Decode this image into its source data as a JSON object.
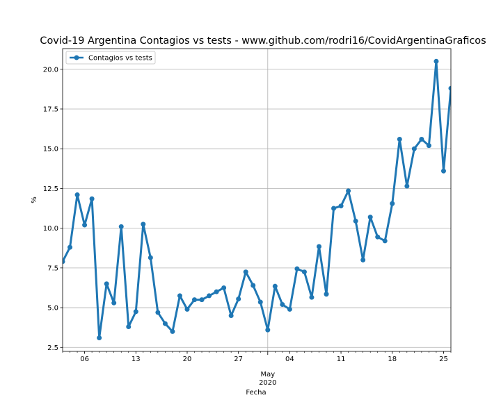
{
  "chart_data": {
    "type": "line",
    "title": "Covid-19 Argentina Contagios vs tests - www.github.com/rodri16/CovidArgentinaGraficos",
    "xlabel": "Fecha",
    "ylabel": "%",
    "x_start": "2020-04-03",
    "x_range": [
      "2020-04-03",
      "2020-05-26"
    ],
    "ylim": [
      2.25,
      21.3
    ],
    "y_ticks": [
      2.5,
      5.0,
      7.5,
      10.0,
      12.5,
      15.0,
      17.5,
      20.0
    ],
    "y_tick_labels": [
      "2.5",
      "5.0",
      "7.5",
      "10.0",
      "12.5",
      "15.0",
      "17.5",
      "20.0"
    ],
    "x_ticks": [
      {
        "date": "2020-04-06",
        "label": "06"
      },
      {
        "date": "2020-04-13",
        "label": "13"
      },
      {
        "date": "2020-04-20",
        "label": "20"
      },
      {
        "date": "2020-04-27",
        "label": "27"
      },
      {
        "date": "2020-05-04",
        "label": "04"
      },
      {
        "date": "2020-05-11",
        "label": "11"
      },
      {
        "date": "2020-05-18",
        "label": "18"
      },
      {
        "date": "2020-05-25",
        "label": "25"
      }
    ],
    "major_tick": {
      "date": "2020-05-01",
      "label_month": "May",
      "label_year": "2020"
    },
    "grid": true,
    "legend_position": "upper-left",
    "series": [
      {
        "name": "Contagios vs tests",
        "color": "#1f77b4",
        "values": [
          7.9,
          8.8,
          12.1,
          10.2,
          11.85,
          3.1,
          6.5,
          5.3,
          10.1,
          3.8,
          4.75,
          10.25,
          8.15,
          4.7,
          4.0,
          3.5,
          5.75,
          4.9,
          5.5,
          5.5,
          5.75,
          6.0,
          6.25,
          4.5,
          5.55,
          7.25,
          6.4,
          5.35,
          3.6,
          6.35,
          5.2,
          4.9,
          7.45,
          7.25,
          5.65,
          8.85,
          5.85,
          11.25,
          11.4,
          12.35,
          10.45,
          8.0,
          10.7,
          9.45,
          9.2,
          11.55,
          15.6,
          12.65,
          15.0,
          15.6,
          15.2,
          20.5,
          13.6,
          18.8
        ]
      }
    ]
  }
}
